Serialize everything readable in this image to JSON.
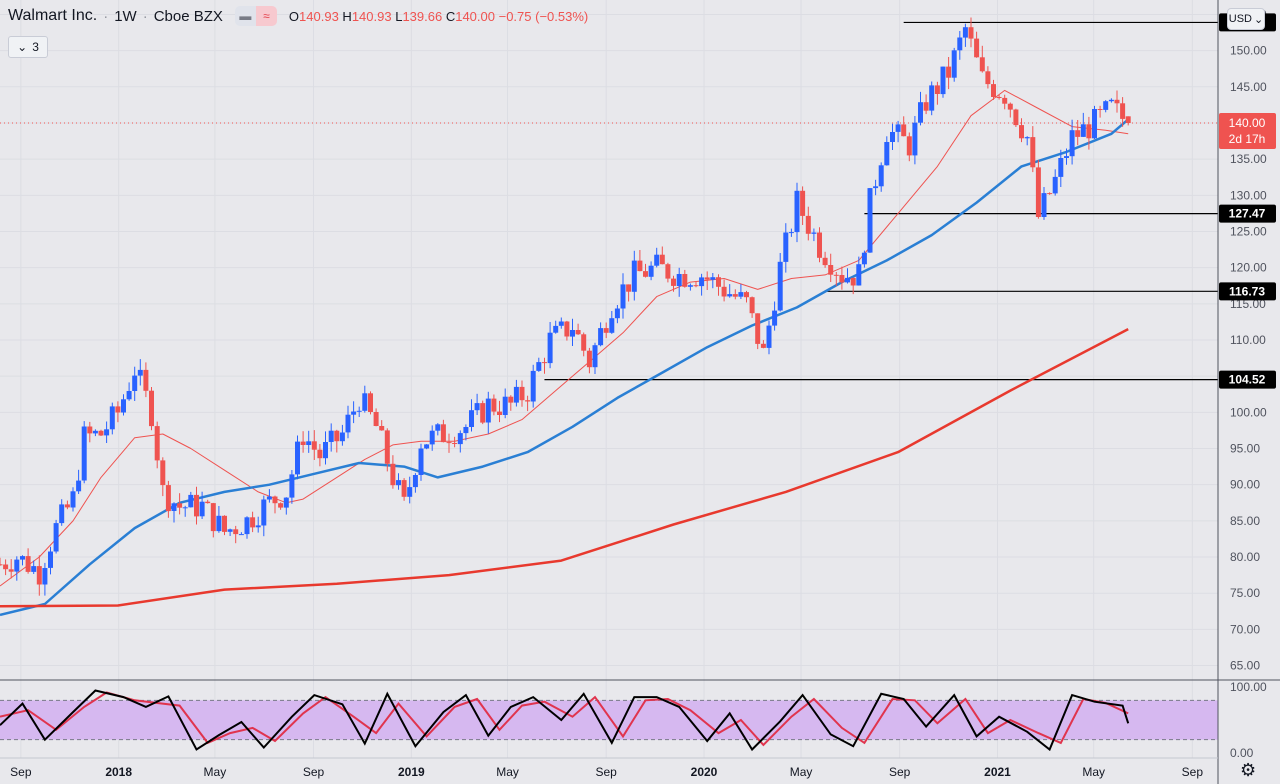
{
  "header": {
    "symbol": "Walmart Inc.",
    "interval": "1W",
    "exchange": "Cboe BZX",
    "open_label": "O",
    "open": "140.93",
    "high_label": "H",
    "high": "140.93",
    "low_label": "L",
    "low": "139.66",
    "close_label": "C",
    "close": "140.00",
    "change": "−0.75 (−0.53%)"
  },
  "indicator_button": {
    "label": "3"
  },
  "currency_button": {
    "label": "USD"
  },
  "colors": {
    "up": "#2962ff",
    "down": "#ef5350",
    "background": "#e8e8ec",
    "ma_fast": "#ef5350",
    "ma_mid": "#2a7fd4",
    "ma_slow": "#e8392e",
    "stoch_band": "#d6b8f0",
    "price_tag": "#ef5350",
    "level_tag": "#000000"
  },
  "chart_data": {
    "type": "candlestick",
    "y_range": [
      63,
      157
    ],
    "y_ticks": [
      "65.00",
      "70.00",
      "75.00",
      "80.00",
      "85.00",
      "90.00",
      "95.00",
      "100.00",
      "105.00",
      "110.00",
      "115.00",
      "120.00",
      "125.00",
      "130.00",
      "135.00",
      "140.00",
      "145.00",
      "150.00",
      "155.00"
    ],
    "x_ticks": [
      "Sep",
      "2018",
      "May",
      "Sep",
      "2019",
      "May",
      "Sep",
      "2020",
      "May",
      "Sep",
      "2021",
      "May",
      "Sep"
    ],
    "x_tick_dates": [
      "2017-09-01",
      "2018-01-01",
      "2018-05-01",
      "2018-09-01",
      "2019-01-01",
      "2019-05-01",
      "2019-09-01",
      "2020-01-01",
      "2020-05-01",
      "2020-09-01",
      "2021-01-01",
      "2021-05-01",
      "2021-09-01"
    ],
    "x_bold": [
      "2018",
      "2019",
      "2020",
      "2021"
    ],
    "x_range": [
      "2017-08-06",
      "2021-10-03"
    ],
    "close_path": [
      [
        "2017-08-06",
        79
      ],
      [
        "2017-08-27",
        80
      ],
      [
        "2017-09-24",
        78
      ],
      [
        "2017-10-15",
        84
      ],
      [
        "2017-11-05",
        88
      ],
      [
        "2017-11-19",
        96.5
      ],
      [
        "2017-12-10",
        97
      ],
      [
        "2017-12-31",
        100
      ],
      [
        "2018-01-21",
        106
      ],
      [
        "2018-02-11",
        100
      ],
      [
        "2018-02-25",
        89
      ],
      [
        "2018-03-18",
        87
      ],
      [
        "2018-04-15",
        87
      ],
      [
        "2018-05-13",
        83.5
      ],
      [
        "2018-06-10",
        85
      ],
      [
        "2018-07-01",
        87
      ],
      [
        "2018-07-29",
        89
      ],
      [
        "2018-08-19",
        97
      ],
      [
        "2018-09-09",
        94
      ],
      [
        "2018-10-07",
        97
      ],
      [
        "2018-10-28",
        102
      ],
      [
        "2018-11-18",
        98
      ],
      [
        "2018-12-09",
        91
      ],
      [
        "2018-12-23",
        87
      ],
      [
        "2019-01-13",
        96
      ],
      [
        "2019-02-10",
        97
      ],
      [
        "2019-03-10",
        98
      ],
      [
        "2019-04-07",
        101
      ],
      [
        "2019-05-05",
        101
      ],
      [
        "2019-05-26",
        103
      ],
      [
        "2019-06-23",
        110
      ],
      [
        "2019-07-21",
        112
      ],
      [
        "2019-08-11",
        107
      ],
      [
        "2019-09-08",
        115
      ],
      [
        "2019-10-06",
        119
      ],
      [
        "2019-11-03",
        120
      ],
      [
        "2019-12-01",
        119
      ],
      [
        "2019-12-29",
        119
      ],
      [
        "2020-01-26",
        117
      ],
      [
        "2020-02-23",
        115
      ],
      [
        "2020-03-15",
        108
      ],
      [
        "2020-04-05",
        120
      ],
      [
        "2020-04-26",
        129
      ],
      [
        "2020-05-24",
        123
      ],
      [
        "2020-06-21",
        119
      ],
      [
        "2020-07-12",
        119
      ],
      [
        "2020-07-26",
        129
      ],
      [
        "2020-08-16",
        139
      ],
      [
        "2020-09-13",
        137
      ],
      [
        "2020-10-04",
        143
      ],
      [
        "2020-11-01",
        147
      ],
      [
        "2020-11-22",
        153
      ],
      [
        "2020-12-13",
        146
      ],
      [
        "2021-01-10",
        144
      ],
      [
        "2021-02-07",
        138
      ],
      [
        "2021-02-21",
        127
      ],
      [
        "2021-03-14",
        132
      ],
      [
        "2021-04-04",
        138
      ],
      [
        "2021-05-02",
        140
      ],
      [
        "2021-05-23",
        142
      ],
      [
        "2021-06-13",
        140
      ]
    ],
    "last": {
      "date": "2021-06-13",
      "open": 140.93,
      "high": 140.93,
      "low": 139.66,
      "close": 140.0
    },
    "series": [
      {
        "name": "",
        "color": "#ef5350",
        "width": 1,
        "points": [
          [
            "2017-08-06",
            76
          ],
          [
            "2017-09-24",
            80
          ],
          [
            "2017-11-05",
            85
          ],
          [
            "2017-12-10",
            91
          ],
          [
            "2018-01-21",
            96.5
          ],
          [
            "2018-02-25",
            97
          ],
          [
            "2018-04-01",
            95
          ],
          [
            "2018-05-13",
            92
          ],
          [
            "2018-06-24",
            89
          ],
          [
            "2018-07-29",
            87.5
          ],
          [
            "2018-08-19",
            88
          ],
          [
            "2018-09-30",
            91
          ],
          [
            "2018-11-04",
            93.5
          ],
          [
            "2018-12-09",
            95.5
          ],
          [
            "2019-01-13",
            96
          ],
          [
            "2019-02-24",
            96
          ],
          [
            "2019-04-07",
            97
          ],
          [
            "2019-05-19",
            99
          ],
          [
            "2019-06-30",
            103
          ],
          [
            "2019-08-11",
            107
          ],
          [
            "2019-09-22",
            111
          ],
          [
            "2019-11-03",
            116
          ],
          [
            "2019-12-15",
            118
          ],
          [
            "2020-01-26",
            118.5
          ],
          [
            "2020-03-08",
            117
          ],
          [
            "2020-04-19",
            118.5
          ],
          [
            "2020-05-31",
            119
          ],
          [
            "2020-07-12",
            121
          ],
          [
            "2020-08-30",
            127.5
          ],
          [
            "2020-10-18",
            134
          ],
          [
            "2020-11-29",
            141
          ],
          [
            "2021-01-10",
            144.5
          ],
          [
            "2021-02-21",
            142
          ],
          [
            "2021-04-04",
            139.5
          ],
          [
            "2021-05-16",
            139
          ],
          [
            "2021-06-13",
            138.5
          ]
        ]
      },
      {
        "name": "",
        "color": "#2a7fd4",
        "width": 2.5,
        "points": [
          [
            "2017-08-06",
            72
          ],
          [
            "2017-10-01",
            73.5
          ],
          [
            "2017-11-26",
            79
          ],
          [
            "2018-01-21",
            84
          ],
          [
            "2018-03-18",
            87.5
          ],
          [
            "2018-05-13",
            89
          ],
          [
            "2018-07-08",
            90
          ],
          [
            "2018-09-02",
            91.5
          ],
          [
            "2018-10-28",
            93
          ],
          [
            "2018-12-23",
            92.5
          ],
          [
            "2019-02-03",
            91
          ],
          [
            "2019-03-31",
            92.5
          ],
          [
            "2019-05-26",
            94.5
          ],
          [
            "2019-07-21",
            98
          ],
          [
            "2019-09-15",
            102
          ],
          [
            "2019-11-10",
            105.5
          ],
          [
            "2020-01-05",
            109
          ],
          [
            "2020-03-01",
            112
          ],
          [
            "2020-04-26",
            114.5
          ],
          [
            "2020-06-21",
            118
          ],
          [
            "2020-08-16",
            121
          ],
          [
            "2020-10-11",
            124.5
          ],
          [
            "2020-12-06",
            129
          ],
          [
            "2021-01-31",
            134
          ],
          [
            "2021-03-28",
            136
          ],
          [
            "2021-05-23",
            138.5
          ],
          [
            "2021-06-13",
            140.5
          ]
        ]
      },
      {
        "name": "",
        "color": "#e8392e",
        "width": 2.5,
        "points": [
          [
            "2017-08-06",
            73.2
          ],
          [
            "2017-12-31",
            73.3
          ],
          [
            "2018-05-13",
            75.5
          ],
          [
            "2018-09-30",
            76.3
          ],
          [
            "2019-02-17",
            77.5
          ],
          [
            "2019-07-07",
            79.5
          ],
          [
            "2019-11-24",
            84.5
          ],
          [
            "2020-04-12",
            89
          ],
          [
            "2020-08-30",
            94.5
          ],
          [
            "2021-01-17",
            103
          ],
          [
            "2021-06-13",
            111.5
          ]
        ]
      }
    ],
    "levels": [
      {
        "value": 153.9,
        "label": "153.90",
        "from": "2020-09-06"
      },
      {
        "value": 127.47,
        "label": "127.47",
        "from": "2020-07-19"
      },
      {
        "value": 116.73,
        "label": "116.73",
        "from": "2020-05-31"
      },
      {
        "value": 104.52,
        "label": "104.52",
        "from": "2019-06-16"
      }
    ],
    "price_tag": {
      "value": 140.0,
      "label": "140.00",
      "sub": "2d 17h"
    },
    "oscillator": {
      "y_range": [
        -8,
        108
      ],
      "ticks": [
        "100.00",
        "0.00"
      ],
      "tick_values": [
        100,
        0
      ],
      "band": [
        20,
        80
      ],
      "k_points": [
        [
          "2017-08-06",
          42
        ],
        [
          "2017-09-03",
          75
        ],
        [
          "2017-10-01",
          20
        ],
        [
          "2017-11-05",
          62
        ],
        [
          "2017-12-03",
          95
        ],
        [
          "2018-01-07",
          85
        ],
        [
          "2018-02-04",
          70
        ],
        [
          "2018-03-04",
          86
        ],
        [
          "2018-04-08",
          5
        ],
        [
          "2018-05-06",
          27
        ],
        [
          "2018-06-03",
          47
        ],
        [
          "2018-07-01",
          8
        ],
        [
          "2018-08-05",
          55
        ],
        [
          "2018-09-02",
          88
        ],
        [
          "2018-10-07",
          74
        ],
        [
          "2018-11-04",
          14
        ],
        [
          "2018-12-02",
          90
        ],
        [
          "2019-01-06",
          10
        ],
        [
          "2019-02-10",
          62
        ],
        [
          "2019-03-10",
          88
        ],
        [
          "2019-04-07",
          26
        ],
        [
          "2019-05-05",
          70
        ],
        [
          "2019-06-02",
          85
        ],
        [
          "2019-07-07",
          50
        ],
        [
          "2019-08-04",
          90
        ],
        [
          "2019-09-08",
          15
        ],
        [
          "2019-10-06",
          85
        ],
        [
          "2019-11-03",
          85
        ],
        [
          "2019-12-01",
          70
        ],
        [
          "2020-01-05",
          18
        ],
        [
          "2020-02-02",
          60
        ],
        [
          "2020-03-01",
          5
        ],
        [
          "2020-04-05",
          48
        ],
        [
          "2020-05-03",
          88
        ],
        [
          "2020-06-07",
          28
        ],
        [
          "2020-07-05",
          10
        ],
        [
          "2020-08-09",
          90
        ],
        [
          "2020-09-06",
          82
        ],
        [
          "2020-10-04",
          40
        ],
        [
          "2020-11-08",
          88
        ],
        [
          "2020-12-06",
          25
        ],
        [
          "2021-01-03",
          55
        ],
        [
          "2021-02-07",
          32
        ],
        [
          "2021-03-07",
          5
        ],
        [
          "2021-04-04",
          88
        ],
        [
          "2021-05-02",
          78
        ],
        [
          "2021-06-06",
          72
        ],
        [
          "2021-06-13",
          45
        ]
      ],
      "d_points": [
        [
          "2017-08-06",
          55
        ],
        [
          "2017-09-10",
          65
        ],
        [
          "2017-10-15",
          35
        ],
        [
          "2017-11-19",
          70
        ],
        [
          "2017-12-17",
          92
        ],
        [
          "2018-01-21",
          80
        ],
        [
          "2018-02-18",
          76
        ],
        [
          "2018-03-18",
          72
        ],
        [
          "2018-04-22",
          15
        ],
        [
          "2018-05-20",
          30
        ],
        [
          "2018-06-17",
          38
        ],
        [
          "2018-07-15",
          18
        ],
        [
          "2018-08-19",
          60
        ],
        [
          "2018-09-16",
          85
        ],
        [
          "2018-10-21",
          55
        ],
        [
          "2018-11-18",
          30
        ],
        [
          "2018-12-16",
          75
        ],
        [
          "2019-01-20",
          25
        ],
        [
          "2019-02-24",
          70
        ],
        [
          "2019-03-24",
          82
        ],
        [
          "2019-04-21",
          35
        ],
        [
          "2019-05-19",
          72
        ],
        [
          "2019-06-16",
          78
        ],
        [
          "2019-07-21",
          55
        ],
        [
          "2019-08-18",
          85
        ],
        [
          "2019-09-22",
          25
        ],
        [
          "2019-10-20",
          80
        ],
        [
          "2019-11-17",
          82
        ],
        [
          "2019-12-15",
          65
        ],
        [
          "2020-01-19",
          30
        ],
        [
          "2020-02-16",
          50
        ],
        [
          "2020-03-15",
          12
        ],
        [
          "2020-04-19",
          55
        ],
        [
          "2020-05-17",
          82
        ],
        [
          "2020-06-21",
          38
        ],
        [
          "2020-07-19",
          15
        ],
        [
          "2020-08-23",
          82
        ],
        [
          "2020-09-20",
          80
        ],
        [
          "2020-10-18",
          45
        ],
        [
          "2020-11-22",
          82
        ],
        [
          "2020-12-20",
          30
        ],
        [
          "2021-01-17",
          50
        ],
        [
          "2021-02-21",
          30
        ],
        [
          "2021-03-21",
          15
        ],
        [
          "2021-04-18",
          82
        ],
        [
          "2021-05-16",
          76
        ],
        [
          "2021-06-13",
          60
        ]
      ]
    }
  }
}
